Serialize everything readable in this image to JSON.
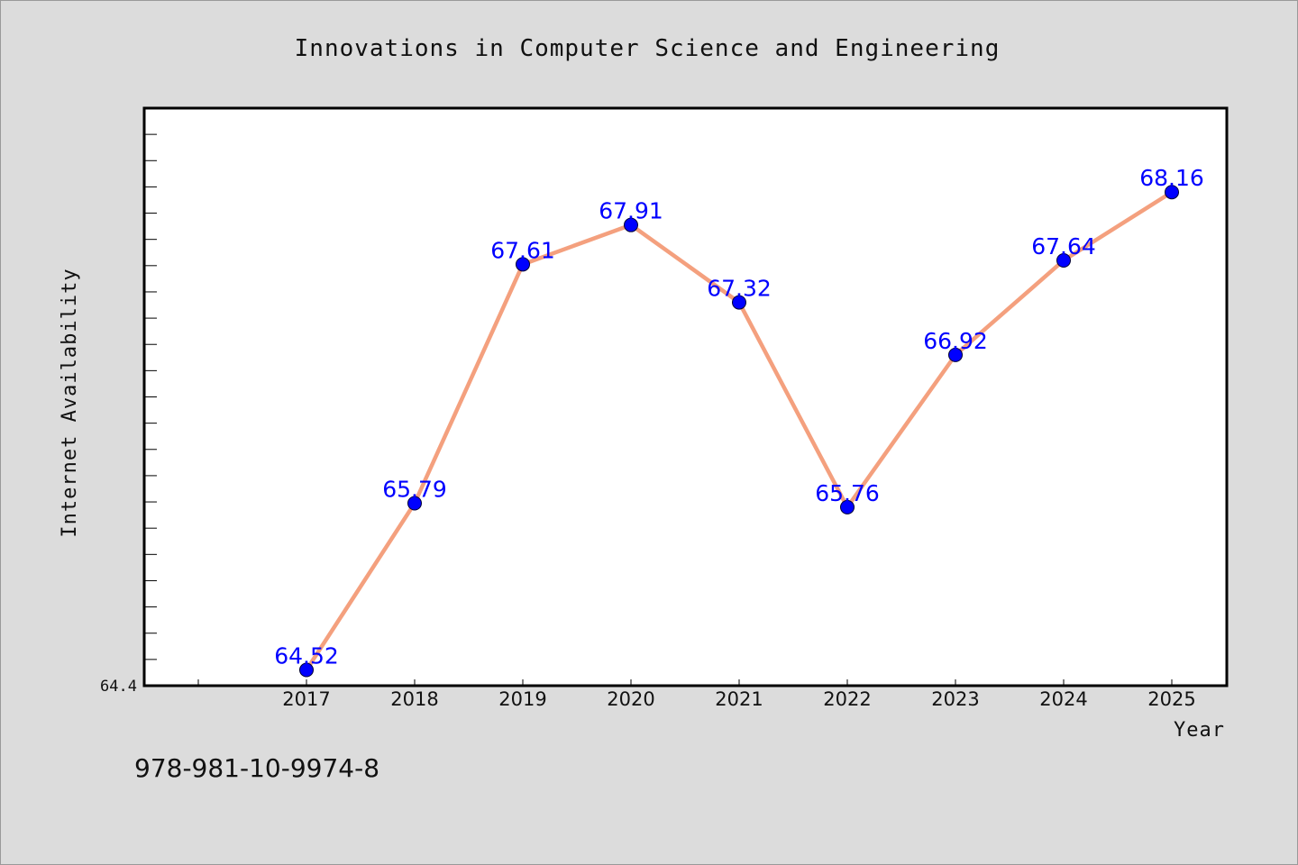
{
  "chart_data": {
    "type": "line",
    "title": "Innovations in Computer Science and Engineering",
    "xlabel": "Year",
    "ylabel": "Internet Availability",
    "categories": [
      "2017",
      "2018",
      "2019",
      "2020",
      "2021",
      "2022",
      "2023",
      "2024",
      "2025"
    ],
    "series": [
      {
        "values": [
          64.52,
          65.79,
          67.61,
          67.91,
          67.32,
          65.76,
          66.92,
          67.64,
          68.16
        ],
        "labels": [
          "64.52",
          "65.79",
          "67.61",
          "67.91",
          "67.32",
          "65.76",
          "66.92",
          "67.64",
          "68.16"
        ]
      }
    ],
    "ylim": [
      64.4,
      68.8
    ],
    "yticks_labeled": [
      "64.4"
    ],
    "grid": false,
    "legend": "none",
    "colors": {
      "line": "#f4a07e",
      "marker": "#0000ff",
      "marker_edge": "#000033",
      "data_label": "#0000ff",
      "background": "#dcdcdc",
      "plot_area": "#ffffff"
    }
  },
  "footer": {
    "isbn": "978-981-10-9974-8"
  }
}
